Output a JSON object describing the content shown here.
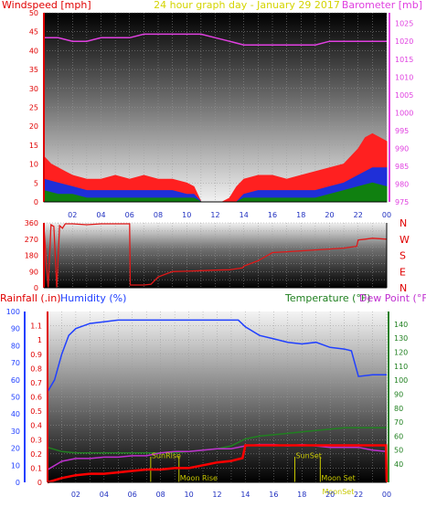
{
  "header": {
    "left_label": "Windspeed [mph]",
    "center_label": "24 hour graph day - January 29 2017",
    "right_label": "Barometer [mb]"
  },
  "panel3_header": {
    "rain_label": "Rainfall (.in)",
    "humidity_label": "Humidity (%)",
    "temp_label": "Temperature (°F)",
    "dew_label": "Dew Point (°F)"
  },
  "colors": {
    "wind_gust": "#ff2020",
    "wind_avg": "#1f2fd8",
    "wind_low": "#108010",
    "barometer": "#e040e0",
    "direction": "#e01818",
    "humidity": "#2040ff",
    "temperature": "#208020",
    "dewpoint": "#c030d0",
    "rain": "#ff0000",
    "sun_moon": "#c8c800"
  },
  "chart_data": [
    {
      "type": "area",
      "title": "24 hour graph day - January 29 2017",
      "ylabel": "Windspeed [mph]",
      "y2label": "Barometer [mb]",
      "xticks": [
        "02",
        "04",
        "06",
        "08",
        "10",
        "12",
        "14",
        "16",
        "18",
        "20",
        "22",
        "00"
      ],
      "ylim": [
        0,
        50
      ],
      "y_ticks": [
        0,
        5,
        10,
        15,
        20,
        25,
        30,
        35,
        40,
        45,
        50
      ],
      "y2lim": [
        975,
        1028
      ],
      "y2_ticks": [
        975,
        980,
        985,
        990,
        995,
        1000,
        1005,
        1010,
        1015,
        1020,
        1025
      ],
      "grid": true,
      "series": [
        {
          "name": "Windspeed gust",
          "x": [
            0,
            0.5,
            1,
            1.5,
            2,
            3,
            4,
            5,
            6,
            7,
            8,
            9,
            10,
            10.5,
            11,
            11.5,
            12,
            12.5,
            13,
            13.5,
            14,
            15,
            16,
            17,
            18,
            19,
            20,
            21,
            21.5,
            22,
            22.5,
            23,
            23.5,
            24
          ],
          "values": [
            12,
            10,
            9,
            8,
            7,
            6,
            6,
            7,
            6,
            7,
            6,
            6,
            5,
            4,
            0,
            0,
            0,
            0,
            1,
            4,
            6,
            7,
            7,
            6,
            7,
            8,
            9,
            10,
            12,
            14,
            17,
            18,
            17,
            16
          ]
        },
        {
          "name": "Windspeed avg",
          "x": [
            0,
            1,
            2,
            3,
            4,
            5,
            6,
            7,
            8,
            9,
            10,
            10.5,
            11,
            13.5,
            14,
            15,
            16,
            17,
            18,
            19,
            20,
            21,
            22,
            23,
            24
          ],
          "values": [
            6,
            5,
            4,
            3,
            3,
            3,
            3,
            3,
            3,
            3,
            2,
            2,
            0,
            0,
            2,
            3,
            3,
            3,
            3,
            3,
            4,
            5,
            7,
            9,
            9
          ]
        },
        {
          "name": "Windspeed low",
          "x": [
            0,
            1,
            2,
            3,
            4,
            5,
            6,
            7,
            8,
            9,
            10,
            10.5,
            11,
            13.5,
            14,
            15,
            16,
            17,
            18,
            19,
            20,
            21,
            22,
            23,
            24
          ],
          "values": [
            3,
            2,
            2,
            1,
            1,
            1,
            1,
            1,
            1,
            1,
            1,
            1,
            0,
            0,
            1,
            1,
            1,
            1,
            1,
            1,
            2,
            3,
            4,
            5,
            4
          ]
        },
        {
          "name": "Barometer",
          "axis": "right",
          "x": [
            0,
            1,
            2,
            3,
            4,
            5,
            6,
            7,
            8,
            9,
            10,
            11,
            12,
            13,
            14,
            15,
            16,
            17,
            18,
            19,
            20,
            21,
            22,
            23,
            24
          ],
          "values": [
            1021,
            1021,
            1020,
            1020,
            1021,
            1021,
            1021,
            1022,
            1022,
            1022,
            1022,
            1022,
            1021,
            1020,
            1019,
            1019,
            1019,
            1019,
            1019,
            1019,
            1020,
            1020,
            1020,
            1020,
            1020
          ]
        }
      ]
    },
    {
      "type": "line",
      "ylim": [
        0,
        360
      ],
      "y_ticks": [
        0,
        45,
        90,
        135,
        180,
        225,
        270,
        315,
        360
      ],
      "y_tick_labels": [
        "0",
        "",
        "90",
        "",
        "180",
        "",
        "270",
        "",
        "360"
      ],
      "right_labels": [
        "N",
        "W",
        "S",
        "E",
        "N"
      ],
      "grid": true,
      "series": [
        {
          "name": "Wind direction",
          "x": [
            0,
            0.3,
            0.5,
            0.7,
            0.9,
            1.1,
            1.3,
            1.5,
            2,
            3,
            4,
            5,
            6,
            6.05,
            7,
            7.5,
            8,
            9,
            10,
            11,
            12,
            13,
            13.9,
            14,
            15,
            16,
            17,
            18,
            19,
            20,
            21,
            21.9,
            22,
            22.5,
            23,
            24
          ],
          "values": [
            340,
            0,
            350,
            340,
            0,
            345,
            330,
            355,
            355,
            350,
            355,
            355,
            355,
            15,
            15,
            20,
            60,
            90,
            92,
            95,
            98,
            100,
            110,
            120,
            150,
            195,
            200,
            205,
            210,
            215,
            220,
            230,
            265,
            270,
            275,
            270
          ]
        }
      ]
    },
    {
      "type": "line",
      "ylabel": "Rainfall (.in)",
      "y1label": "Humidity (%)",
      "y2label": "Temperature (°F)",
      "y3label": "Dew Point (°F)",
      "rain_ylim": [
        0,
        1.2
      ],
      "rain_ticks": [
        0,
        0.1,
        0.2,
        0.3,
        0.4,
        0.5,
        0.6,
        0.7,
        0.8,
        0.9,
        1,
        1.1
      ],
      "humidity_ylim": [
        0,
        100
      ],
      "humidity_ticks": [
        0,
        10,
        20,
        30,
        40,
        50,
        60,
        70,
        80,
        90,
        100
      ],
      "temp_ylim": [
        27,
        149
      ],
      "temp_ticks": [
        40,
        50,
        60,
        70,
        80,
        90,
        100,
        110,
        120,
        130,
        140
      ],
      "grid": true,
      "annotations": [
        {
          "text": "SunRise",
          "x": 7.3
        },
        {
          "text": "Moon Rise",
          "x": 9.3
        },
        {
          "text": "SunSet",
          "x": 17.5
        },
        {
          "text": "Moon Set",
          "x": 19.3
        },
        {
          "text": "MoonSet",
          "x": 20.5
        }
      ],
      "series": [
        {
          "name": "Humidity",
          "axis": "humidity",
          "x": [
            0,
            0.5,
            1,
            1.5,
            2,
            3,
            4,
            5,
            6,
            7,
            8,
            9,
            10,
            11,
            12,
            13,
            13.5,
            14,
            15,
            16,
            17,
            18,
            19,
            20,
            21,
            21.5,
            21.8,
            22,
            23,
            24
          ],
          "values": [
            53,
            60,
            75,
            86,
            90,
            93,
            94,
            95,
            95,
            95,
            95,
            95,
            95,
            95,
            95,
            95,
            95,
            91,
            86,
            84,
            82,
            81,
            82,
            79,
            78,
            77,
            68,
            62,
            63,
            63
          ]
        },
        {
          "name": "Temperature",
          "axis": "temp",
          "x": [
            0,
            1,
            2,
            3,
            4,
            5,
            6,
            7,
            8,
            9,
            10,
            11,
            12,
            13,
            14,
            15,
            16,
            17,
            18,
            19,
            20,
            21,
            22,
            23,
            24
          ],
          "values": [
            52,
            49,
            48,
            48,
            48,
            48,
            48,
            48,
            48,
            48,
            49,
            50,
            51,
            53,
            58,
            60,
            61,
            62,
            63,
            64,
            65,
            66,
            66,
            66,
            66
          ]
        },
        {
          "name": "Dew point",
          "axis": "temp",
          "x": [
            0,
            1,
            2,
            3,
            4,
            5,
            6,
            7,
            8,
            9,
            10,
            11,
            12,
            13,
            14,
            15,
            16,
            17,
            18,
            19,
            20,
            21,
            22,
            23,
            24
          ],
          "values": [
            36,
            42,
            44,
            44,
            45,
            45,
            46,
            46,
            48,
            49,
            49,
            50,
            51,
            51,
            53,
            54,
            54,
            53,
            54,
            53,
            52,
            52,
            52,
            50,
            49
          ]
        },
        {
          "name": "Rainfall",
          "axis": "rain",
          "x": [
            0,
            1,
            2,
            3,
            4,
            5,
            6,
            7,
            8,
            9,
            10,
            11,
            12,
            13,
            13.8,
            14,
            15,
            16,
            17,
            18,
            19,
            20,
            21,
            22,
            23,
            23.95,
            24
          ],
          "values": [
            0,
            0.03,
            0.05,
            0.06,
            0.06,
            0.07,
            0.08,
            0.09,
            0.09,
            0.1,
            0.1,
            0.12,
            0.14,
            0.15,
            0.17,
            0.26,
            0.26,
            0.26,
            0.26,
            0.26,
            0.26,
            0.26,
            0.26,
            0.26,
            0.26,
            0.26,
            0
          ]
        }
      ]
    }
  ]
}
